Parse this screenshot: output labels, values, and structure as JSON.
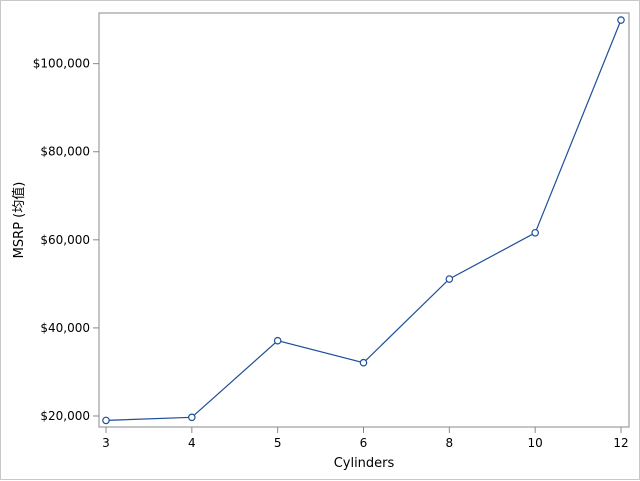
{
  "chart_data": {
    "type": "line",
    "title": "",
    "xlabel": "Cylinders",
    "ylabel": "MSRP (均值)",
    "categories": [
      "3",
      "4",
      "5",
      "6",
      "8",
      "10",
      "12"
    ],
    "series": [
      {
        "values": [
          19000,
          19700,
          37100,
          32100,
          51100,
          61600,
          109900
        ]
      }
    ],
    "yticks": [
      20000,
      40000,
      60000,
      80000,
      100000
    ],
    "ytick_labels": [
      "$20,000",
      "$40,000",
      "$60,000",
      "$80,000",
      "$100,000"
    ],
    "ylim": [
      17500,
      111500
    ],
    "grid": false,
    "legend": "none",
    "colors": {
      "line": "#1f4e99",
      "marker": "#1f4e99",
      "axis": "#888888"
    },
    "marker": "circle-open"
  }
}
